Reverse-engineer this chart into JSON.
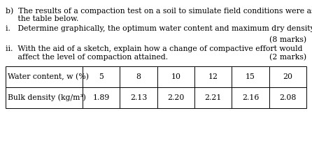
{
  "line1": "b)  The results of a compaction test on a soil to simulate field conditions were as in",
  "line2": "     the table below.",
  "line3": "i.   Determine graphically, the optimum water content and maximum dry density.",
  "marks1": "(8 marks)",
  "line4": "ii.  With the aid of a sketch, explain how a change of compactive effort would",
  "line5": "     affect the level of compaction attained.",
  "marks2": "(2 marks)",
  "row1_label": "Water content, w (%)",
  "row1_vals": [
    "5",
    "8",
    "10",
    "12",
    "15",
    "20"
  ],
  "row2_label": "Bulk density (kg/m³)",
  "row2_vals": [
    "1.89",
    "2.13",
    "2.20",
    "2.21",
    "2.16",
    "2.08"
  ],
  "bg": "#ffffff",
  "fg": "#000000",
  "fs_body": 7.8,
  "fs_table": 7.8
}
